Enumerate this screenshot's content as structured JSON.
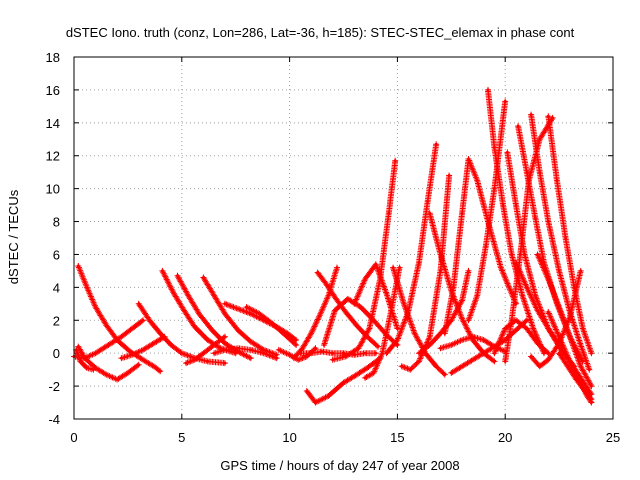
{
  "chart_data": {
    "type": "scatter",
    "title": "dSTEC Iono. truth (conz, Lon=286, Lat=-36, h=185): STEC-STEC_elemax in phase cont",
    "xlabel": "GPS time / hours of day 247 of year 2008",
    "ylabel": "dSTEC  / TECUs",
    "xlim": [
      0,
      25
    ],
    "ylim": [
      -4,
      18
    ],
    "xticks": [
      "0",
      "5",
      "10",
      "15",
      "20",
      "25"
    ],
    "yticks": [
      "-4",
      "-2",
      "0",
      "2",
      "4",
      "6",
      "8",
      "10",
      "12",
      "14",
      "16",
      "18"
    ],
    "grid": true,
    "marker": "+",
    "color": "#ff0000",
    "series": [
      {
        "x": [
          0.2,
          0.5,
          1.0,
          1.5,
          2.0,
          2.5,
          3.0
        ],
        "y": [
          0.4,
          -0.3,
          -0.9,
          -1.3,
          -1.6,
          -1.2,
          -0.7
        ]
      },
      {
        "x": [
          0.0,
          0.5,
          1.0,
          1.6,
          2.2,
          2.8,
          3.2
        ],
        "y": [
          -0.2,
          -0.3,
          0.0,
          0.5,
          1.0,
          1.6,
          2.0
        ]
      },
      {
        "x": [
          0.2,
          0.6,
          1.0,
          1.5,
          2.0,
          2.6,
          3.2,
          3.7,
          4.0
        ],
        "y": [
          5.3,
          4.0,
          2.8,
          1.7,
          0.8,
          0.1,
          -0.4,
          -0.8,
          -1.1
        ]
      },
      {
        "x": [
          0.1,
          0.3,
          0.6,
          0.9
        ],
        "y": [
          0.2,
          -0.5,
          -0.9,
          -1.0
        ]
      },
      {
        "x": [
          3.0,
          3.5,
          4.0,
          4.5,
          5.0,
          5.6,
          6.2,
          7.0
        ],
        "y": [
          3.0,
          2.0,
          1.2,
          0.5,
          0.0,
          -0.3,
          -0.5,
          -0.6
        ]
      },
      {
        "x": [
          2.2,
          2.7,
          3.2,
          3.7,
          4.2
        ],
        "y": [
          -0.3,
          -0.1,
          0.2,
          0.6,
          1.0
        ]
      },
      {
        "x": [
          4.1,
          4.6,
          5.1,
          5.6,
          6.2,
          6.8,
          7.5
        ],
        "y": [
          5.0,
          3.7,
          2.6,
          1.6,
          0.8,
          0.3,
          0.0
        ]
      },
      {
        "x": [
          4.8,
          5.3,
          5.8,
          6.4,
          7.0,
          7.6,
          8.2
        ],
        "y": [
          4.7,
          3.5,
          2.4,
          1.4,
          0.6,
          0.1,
          -0.3
        ]
      },
      {
        "x": [
          5.2,
          5.6,
          6.0,
          6.5,
          7.0
        ],
        "y": [
          -0.6,
          -0.4,
          0.0,
          0.5,
          1.0
        ]
      },
      {
        "x": [
          6.0,
          6.5,
          7.0,
          7.6,
          8.2,
          8.8,
          9.4
        ],
        "y": [
          4.6,
          3.5,
          2.4,
          1.4,
          0.7,
          0.2,
          -0.1
        ]
      },
      {
        "x": [
          7.0,
          7.6,
          8.2,
          8.8,
          9.4,
          9.9,
          10.3
        ],
        "y": [
          3.0,
          2.7,
          2.4,
          2.0,
          1.6,
          1.2,
          0.8
        ]
      },
      {
        "x": [
          8.0,
          8.6,
          9.2,
          9.8,
          10.3
        ],
        "y": [
          2.8,
          2.4,
          1.8,
          1.1,
          0.5
        ]
      },
      {
        "x": [
          6.5,
          7.0,
          7.6,
          8.2,
          8.8,
          9.4
        ],
        "y": [
          0.0,
          0.2,
          0.3,
          0.2,
          0.0,
          -0.3
        ]
      },
      {
        "x": [
          9.5,
          10.0,
          10.4,
          10.8,
          11.2
        ],
        "y": [
          0.2,
          -0.1,
          -0.4,
          -0.2,
          0.3
        ]
      },
      {
        "x": [
          10.2,
          10.6,
          11.0,
          11.4,
          11.8,
          12.2
        ],
        "y": [
          -0.3,
          0.3,
          1.2,
          2.3,
          3.5,
          5.2
        ]
      },
      {
        "x": [
          10.5,
          11.0,
          11.5,
          12.0,
          12.5,
          13.0,
          13.5,
          14.0
        ],
        "y": [
          0.0,
          0.0,
          0.1,
          0.0,
          0.0,
          -0.1,
          0.0,
          0.0
        ]
      },
      {
        "x": [
          10.8,
          11.2,
          11.8,
          12.5,
          13.0,
          13.6,
          14.2
        ],
        "y": [
          -2.3,
          -3.0,
          -2.6,
          -1.8,
          -1.4,
          -0.9,
          -0.3
        ]
      },
      {
        "x": [
          11.3,
          11.7,
          12.1,
          12.6,
          13.1,
          13.6,
          14.1
        ],
        "y": [
          4.9,
          4.2,
          3.4,
          2.5,
          1.7,
          1.0,
          0.4
        ]
      },
      {
        "x": [
          11.6,
          12.1,
          12.7,
          13.3,
          13.9,
          14.5,
          15.0
        ],
        "y": [
          0.5,
          2.6,
          3.3,
          2.8,
          2.0,
          1.1,
          0.5
        ]
      },
      {
        "x": [
          12.0,
          12.6,
          13.2,
          13.7,
          14.2,
          14.6,
          14.9
        ],
        "y": [
          -0.4,
          -0.2,
          0.3,
          1.5,
          4.5,
          8.5,
          11.7
        ]
      },
      {
        "x": [
          13.5,
          13.9,
          14.3,
          14.7,
          15.1
        ],
        "y": [
          -1.5,
          -1.2,
          0.0,
          2.5,
          5.2
        ]
      },
      {
        "x": [
          13.0,
          13.5,
          14.0,
          14.5,
          15.0
        ],
        "y": [
          3.0,
          4.5,
          5.4,
          3.6,
          1.5
        ]
      },
      {
        "x": [
          14.8,
          15.3,
          15.8,
          16.3,
          16.8,
          17.2
        ],
        "y": [
          5.2,
          3.0,
          1.2,
          0.0,
          -0.8,
          -1.3
        ]
      },
      {
        "x": [
          14.5,
          15.0,
          15.5,
          16.0,
          16.4,
          16.8
        ],
        "y": [
          0.0,
          0.8,
          2.5,
          5.5,
          9.2,
          12.7
        ]
      },
      {
        "x": [
          15.2,
          15.6,
          16.0,
          16.5,
          17.0,
          17.4
        ],
        "y": [
          -0.8,
          -1.0,
          -0.5,
          1.0,
          5.0,
          10.8
        ]
      },
      {
        "x": [
          16.0,
          16.5,
          17.0,
          17.5,
          18.0,
          18.3
        ],
        "y": [
          0.0,
          0.5,
          1.2,
          2.0,
          3.2,
          5.0
        ]
      },
      {
        "x": [
          16.5,
          17.0,
          17.5,
          18.0,
          18.5,
          19.0,
          19.5
        ],
        "y": [
          8.5,
          6.0,
          3.8,
          2.1,
          0.8,
          0.0,
          -0.5
        ]
      },
      {
        "x": [
          17.2,
          17.6,
          18.0,
          18.3,
          18.7,
          19.2,
          19.8,
          20.5
        ],
        "y": [
          1.2,
          4.0,
          8.5,
          11.8,
          10.5,
          8.0,
          5.2,
          3.0
        ]
      },
      {
        "x": [
          17.0,
          17.5,
          18.0,
          18.5,
          19.0,
          19.5,
          20.0
        ],
        "y": [
          0.3,
          0.5,
          0.8,
          1.0,
          0.8,
          0.4,
          0.1
        ]
      },
      {
        "x": [
          17.5,
          18.0,
          18.5,
          19.0,
          19.5,
          20.0,
          20.5,
          21.0
        ],
        "y": [
          -1.2,
          -0.8,
          -0.4,
          0.0,
          0.4,
          0.8,
          1.4,
          2.0
        ]
      },
      {
        "x": [
          18.3,
          18.7,
          19.1,
          19.5,
          20.0
        ],
        "y": [
          2.0,
          3.5,
          6.5,
          10.0,
          15.3
        ]
      },
      {
        "x": [
          19.2,
          19.5,
          19.9,
          20.3,
          20.8,
          21.3,
          21.8
        ],
        "y": [
          16.0,
          12.5,
          9.0,
          6.0,
          3.5,
          1.5,
          0.0
        ]
      },
      {
        "x": [
          19.5,
          20.0,
          20.5,
          21.0,
          21.5,
          22.0
        ],
        "y": [
          0.0,
          1.5,
          2.0,
          1.5,
          0.6,
          0.0
        ]
      },
      {
        "x": [
          20.0,
          20.3,
          20.7,
          21.1,
          21.6,
          22.2
        ],
        "y": [
          -0.5,
          2.0,
          6.0,
          10.5,
          13.0,
          14.3
        ]
      },
      {
        "x": [
          20.1,
          20.5,
          20.9,
          21.4,
          22.0,
          22.6,
          23.2
        ],
        "y": [
          12.2,
          9.0,
          6.0,
          3.5,
          1.5,
          0.2,
          -0.8
        ]
      },
      {
        "x": [
          20.6,
          21.0,
          21.4,
          21.8,
          22.4,
          23.0,
          23.6
        ],
        "y": [
          13.8,
          11.0,
          8.2,
          5.5,
          3.0,
          1.0,
          -0.5
        ]
      },
      {
        "x": [
          21.2,
          21.6,
          22.0,
          22.5,
          23.0,
          23.5,
          23.9
        ],
        "y": [
          14.5,
          11.0,
          8.0,
          5.0,
          2.5,
          0.5,
          -1.0
        ]
      },
      {
        "x": [
          22.0,
          22.4,
          22.8,
          23.2,
          23.6,
          24.0
        ],
        "y": [
          14.4,
          10.5,
          7.0,
          4.0,
          1.5,
          0.0
        ]
      },
      {
        "x": [
          21.2,
          21.6,
          22.0,
          22.5,
          23.0,
          23.5
        ],
        "y": [
          -0.2,
          -0.8,
          -0.4,
          0.6,
          2.2,
          5.0
        ]
      },
      {
        "x": [
          20.5,
          21.0,
          21.5,
          22.0,
          22.5,
          23.0,
          23.5,
          24.0
        ],
        "y": [
          5.5,
          4.0,
          2.6,
          1.5,
          0.5,
          -0.5,
          -1.5,
          -2.5
        ]
      },
      {
        "x": [
          21.5,
          22.0,
          22.5,
          23.0,
          23.5,
          24.0
        ],
        "y": [
          6.0,
          4.5,
          2.8,
          1.0,
          -0.8,
          -2.0
        ]
      },
      {
        "x": [
          22.0,
          22.5,
          23.0,
          23.4,
          23.8,
          24.0
        ],
        "y": [
          2.5,
          1.0,
          -0.5,
          -1.5,
          -2.6,
          -3.0
        ]
      },
      {
        "x": [
          22.5,
          22.9,
          23.3,
          23.7,
          24.0
        ],
        "y": [
          0.0,
          -0.8,
          -1.6,
          -2.3,
          -2.8
        ]
      }
    ]
  }
}
